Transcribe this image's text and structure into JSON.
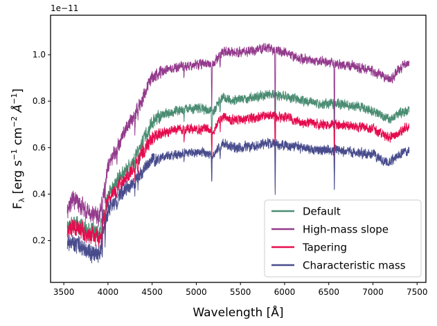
{
  "chart_data": {
    "type": "line",
    "xlabel": "Wavelength [Å]",
    "ylabel_base": "F",
    "ylabel_sub": "λ",
    "ylabel_rest": " [erg s",
    "ylabel_exp1": "−1",
    "ylabel_mid1": " cm",
    "ylabel_exp2": "−2",
    "ylabel_mid2": " Å",
    "ylabel_exp3": "−1",
    "ylabel_end": "]",
    "offset_text": "1e−11",
    "xlim": [
      3350,
      7600
    ],
    "ylim": [
      0.02,
      1.17
    ],
    "xticks": [
      3500,
      4000,
      4500,
      5000,
      5500,
      6000,
      6500,
      7000,
      7500
    ],
    "xtick_labels": [
      "3500",
      "4000",
      "4500",
      "5000",
      "5500",
      "6000",
      "6500",
      "7000",
      "7500"
    ],
    "yticks": [
      0.2,
      0.4,
      0.6,
      0.8,
      1.0
    ],
    "ytick_labels": [
      "0.2",
      "0.4",
      "0.6",
      "0.8",
      "1.0"
    ],
    "grid": false,
    "legend_position": "lower-right",
    "x_range": [
      3540,
      7410
    ],
    "series": [
      {
        "name": "Default",
        "color": "#4a8c72",
        "anchors": [
          [
            3540,
            0.27
          ],
          [
            3600,
            0.28
          ],
          [
            3700,
            0.26
          ],
          [
            3800,
            0.24
          ],
          [
            3900,
            0.23
          ],
          [
            4000,
            0.39
          ],
          [
            4100,
            0.46
          ],
          [
            4200,
            0.5
          ],
          [
            4300,
            0.55
          ],
          [
            4400,
            0.63
          ],
          [
            4500,
            0.71
          ],
          [
            4600,
            0.74
          ],
          [
            4800,
            0.76
          ],
          [
            5000,
            0.77
          ],
          [
            5200,
            0.76
          ],
          [
            5300,
            0.82
          ],
          [
            5400,
            0.8
          ],
          [
            5500,
            0.81
          ],
          [
            5700,
            0.82
          ],
          [
            5800,
            0.83
          ],
          [
            6000,
            0.82
          ],
          [
            6200,
            0.8
          ],
          [
            6400,
            0.79
          ],
          [
            6600,
            0.79
          ],
          [
            6800,
            0.78
          ],
          [
            7000,
            0.76
          ],
          [
            7100,
            0.74
          ],
          [
            7200,
            0.72
          ],
          [
            7300,
            0.75
          ],
          [
            7410,
            0.76
          ]
        ]
      },
      {
        "name": "High-mass slope",
        "color": "#933a8c",
        "anchors": [
          [
            3540,
            0.33
          ],
          [
            3600,
            0.38
          ],
          [
            3700,
            0.35
          ],
          [
            3800,
            0.32
          ],
          [
            3900,
            0.3
          ],
          [
            4000,
            0.52
          ],
          [
            4100,
            0.6
          ],
          [
            4200,
            0.68
          ],
          [
            4300,
            0.74
          ],
          [
            4400,
            0.82
          ],
          [
            4500,
            0.9
          ],
          [
            4600,
            0.93
          ],
          [
            4800,
            0.95
          ],
          [
            5000,
            0.96
          ],
          [
            5200,
            0.96
          ],
          [
            5300,
            1.02
          ],
          [
            5400,
            1.01
          ],
          [
            5500,
            1.01
          ],
          [
            5700,
            1.02
          ],
          [
            5800,
            1.03
          ],
          [
            6000,
            1.01
          ],
          [
            6200,
            0.98
          ],
          [
            6400,
            0.97
          ],
          [
            6600,
            0.96
          ],
          [
            6800,
            0.95
          ],
          [
            7000,
            0.93
          ],
          [
            7100,
            0.91
          ],
          [
            7200,
            0.89
          ],
          [
            7300,
            0.94
          ],
          [
            7410,
            0.97
          ]
        ]
      },
      {
        "name": "Tapering",
        "color": "#e50c4e",
        "anchors": [
          [
            3540,
            0.24
          ],
          [
            3600,
            0.26
          ],
          [
            3700,
            0.24
          ],
          [
            3800,
            0.22
          ],
          [
            3900,
            0.21
          ],
          [
            4000,
            0.37
          ],
          [
            4100,
            0.43
          ],
          [
            4200,
            0.47
          ],
          [
            4300,
            0.52
          ],
          [
            4400,
            0.58
          ],
          [
            4500,
            0.64
          ],
          [
            4600,
            0.66
          ],
          [
            4800,
            0.68
          ],
          [
            5000,
            0.68
          ],
          [
            5200,
            0.68
          ],
          [
            5300,
            0.74
          ],
          [
            5400,
            0.72
          ],
          [
            5500,
            0.72
          ],
          [
            5700,
            0.73
          ],
          [
            5800,
            0.74
          ],
          [
            6000,
            0.73
          ],
          [
            6200,
            0.71
          ],
          [
            6400,
            0.7
          ],
          [
            6600,
            0.7
          ],
          [
            6800,
            0.69
          ],
          [
            7000,
            0.68
          ],
          [
            7100,
            0.66
          ],
          [
            7200,
            0.64
          ],
          [
            7300,
            0.67
          ],
          [
            7410,
            0.69
          ]
        ]
      },
      {
        "name": "Characteristic mass",
        "color": "#484c8c",
        "anchors": [
          [
            3540,
            0.18
          ],
          [
            3600,
            0.19
          ],
          [
            3700,
            0.17
          ],
          [
            3800,
            0.15
          ],
          [
            3900,
            0.14
          ],
          [
            4000,
            0.33
          ],
          [
            4100,
            0.38
          ],
          [
            4200,
            0.42
          ],
          [
            4300,
            0.45
          ],
          [
            4400,
            0.5
          ],
          [
            4500,
            0.55
          ],
          [
            4600,
            0.56
          ],
          [
            4800,
            0.57
          ],
          [
            5000,
            0.58
          ],
          [
            5200,
            0.57
          ],
          [
            5300,
            0.62
          ],
          [
            5400,
            0.6
          ],
          [
            5500,
            0.6
          ],
          [
            5700,
            0.61
          ],
          [
            5800,
            0.62
          ],
          [
            6000,
            0.61
          ],
          [
            6200,
            0.6
          ],
          [
            6400,
            0.59
          ],
          [
            6600,
            0.59
          ],
          [
            6800,
            0.58
          ],
          [
            7000,
            0.57
          ],
          [
            7100,
            0.55
          ],
          [
            7200,
            0.54
          ],
          [
            7300,
            0.57
          ],
          [
            7410,
            0.59
          ]
        ]
      }
    ],
    "absorption_lines": [
      {
        "x": 3934,
        "depth": 0.35
      },
      {
        "x": 3968,
        "depth": 0.3
      },
      {
        "x": 4101,
        "depth": 0.08
      },
      {
        "x": 4305,
        "depth": 0.1
      },
      {
        "x": 4340,
        "depth": 0.08
      },
      {
        "x": 4861,
        "depth": 0.07
      },
      {
        "x": 5175,
        "depth": 0.22
      },
      {
        "x": 5270,
        "depth": 0.06
      },
      {
        "x": 5893,
        "depth": 0.35
      },
      {
        "x": 6563,
        "depth": 0.3
      }
    ]
  }
}
